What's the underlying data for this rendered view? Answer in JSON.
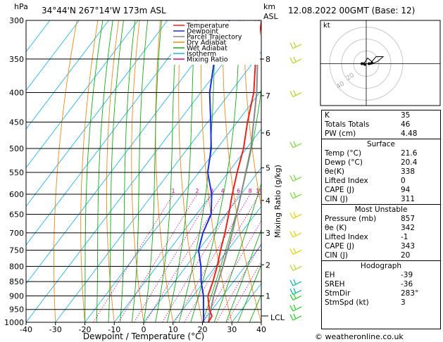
{
  "header": {
    "location": "34°44'N 267°14'W 173m ASL",
    "datetime": "12.08.2022 00GMT (Base: 12)",
    "hpa_label": "hPa",
    "km_label": "km",
    "asl_label": "ASL",
    "mixing_ratio_label": "Mixing Ratio (g/kg)",
    "watermark": "© weatheronline.co.uk",
    "lcl_label": "LCL"
  },
  "chart_data": {
    "type": "skew-t",
    "xlabel": "Dewpoint / Temperature (°C)",
    "x_ticks": [
      -40,
      -30,
      -20,
      -10,
      0,
      10,
      20,
      30,
      40
    ],
    "pressure_levels": [
      300,
      350,
      400,
      450,
      500,
      550,
      600,
      650,
      700,
      750,
      800,
      850,
      900,
      950,
      1000
    ],
    "km_ticks": [
      {
        "label": "8",
        "p": 350
      },
      {
        "label": "7",
        "p": 405
      },
      {
        "label": "6",
        "p": 470
      },
      {
        "label": "5",
        "p": 540
      },
      {
        "label": "4",
        "p": 615
      },
      {
        "label": "3",
        "p": 700
      },
      {
        "label": "2",
        "p": 795
      },
      {
        "label": "1",
        "p": 900
      }
    ],
    "mixing_ratio_labels": [
      "1",
      "2",
      "3",
      "4",
      "6",
      "8",
      "10",
      "15",
      "20",
      "25"
    ],
    "legend": [
      {
        "name": "Temperature",
        "color": "#e8241c"
      },
      {
        "name": "Dewpoint",
        "color": "#1a2ee0"
      },
      {
        "name": "Parcel Trajectory",
        "color": "#888888"
      },
      {
        "name": "Dry Adiabat",
        "color": "#e88a1c"
      },
      {
        "name": "Wet Adiabat",
        "color": "#1aa81a"
      },
      {
        "name": "Isotherm",
        "color": "#29b2e8"
      },
      {
        "name": "Mixing Ratio",
        "color": "#d0008c"
      }
    ],
    "temperature": [
      {
        "p": 1000,
        "t": 22
      },
      {
        "p": 975,
        "t": 21.6
      },
      {
        "p": 950,
        "t": 19
      },
      {
        "p": 900,
        "t": 15
      },
      {
        "p": 850,
        "t": 13
      },
      {
        "p": 800,
        "t": 10.5
      },
      {
        "p": 750,
        "t": 7.5
      },
      {
        "p": 700,
        "t": 4.5
      },
      {
        "p": 650,
        "t": 1
      },
      {
        "p": 600,
        "t": -3
      },
      {
        "p": 550,
        "t": -7
      },
      {
        "p": 500,
        "t": -11
      },
      {
        "p": 450,
        "t": -16.5
      },
      {
        "p": 400,
        "t": -22
      },
      {
        "p": 350,
        "t": -30
      },
      {
        "p": 300,
        "t": -38
      }
    ],
    "dewpoint": [
      {
        "p": 1000,
        "t": 20.4
      },
      {
        "p": 950,
        "t": 17
      },
      {
        "p": 900,
        "t": 13.5
      },
      {
        "p": 850,
        "t": 9
      },
      {
        "p": 800,
        "t": 5
      },
      {
        "p": 750,
        "t": 0
      },
      {
        "p": 700,
        "t": -3
      },
      {
        "p": 650,
        "t": -5
      },
      {
        "p": 600,
        "t": -10
      },
      {
        "p": 550,
        "t": -17
      },
      {
        "p": 500,
        "t": -22
      },
      {
        "p": 450,
        "t": -29
      },
      {
        "p": 400,
        "t": -37
      },
      {
        "p": 350,
        "t": -44
      },
      {
        "p": 300,
        "t": -49
      }
    ],
    "parcel": [
      {
        "p": 1000,
        "t": 22
      },
      {
        "p": 970,
        "t": 20.5
      },
      {
        "p": 900,
        "t": 17
      },
      {
        "p": 800,
        "t": 12.5
      },
      {
        "p": 700,
        "t": 7
      },
      {
        "p": 600,
        "t": 0
      },
      {
        "p": 500,
        "t": -8.5
      },
      {
        "p": 400,
        "t": -21
      },
      {
        "p": 300,
        "t": -39
      }
    ]
  },
  "hodograph": {
    "label": "kt",
    "ring_labels": [
      "20",
      "40"
    ]
  },
  "indices": {
    "rows": [
      {
        "label": "K",
        "value": "35"
      },
      {
        "label": "Totals Totals",
        "value": "46"
      },
      {
        "label": "PW (cm)",
        "value": "4.48"
      }
    ]
  },
  "surface": {
    "title": "Surface",
    "rows": [
      {
        "label": "Temp (°C)",
        "value": "21.6"
      },
      {
        "label": "Dewp (°C)",
        "value": "20.4"
      },
      {
        "label": "θe(K)",
        "value": "338"
      },
      {
        "label": "Lifted Index",
        "value": "0"
      },
      {
        "label": "CAPE (J)",
        "value": "94"
      },
      {
        "label": "CIN (J)",
        "value": "311"
      }
    ]
  },
  "most_unstable": {
    "title": "Most Unstable",
    "rows": [
      {
        "label": "Pressure (mb)",
        "value": "857"
      },
      {
        "label": "θe (K)",
        "value": "342"
      },
      {
        "label": "Lifted Index",
        "value": "-1"
      },
      {
        "label": "CAPE (J)",
        "value": "343"
      },
      {
        "label": "CIN (J)",
        "value": "20"
      }
    ]
  },
  "hodograph_table": {
    "title": "Hodograph",
    "rows": [
      {
        "label": "EH",
        "value": "-39"
      },
      {
        "label": "SREH",
        "value": "-36"
      },
      {
        "label": "StmDir",
        "value": "283°"
      },
      {
        "label": "StmSpd (kt)",
        "value": "3"
      }
    ]
  }
}
